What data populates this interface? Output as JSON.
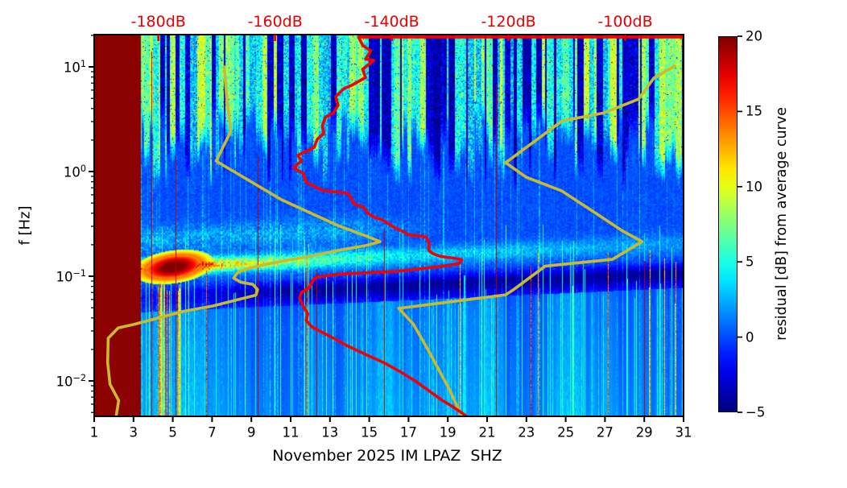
{
  "figure": {
    "background": "#ffffff"
  },
  "chart_data": {
    "type": "heatmap",
    "title": "November 2025 IM LPAZ  SHZ",
    "ylabel": "f [Hz]",
    "x_axis": {
      "units": "day of month",
      "range": [
        1,
        31
      ],
      "tick_values": [
        1,
        3,
        5,
        7,
        9,
        11,
        13,
        15,
        17,
        19,
        21,
        23,
        25,
        27,
        29,
        31
      ],
      "tick_labels": [
        "1",
        "3",
        "5",
        "7",
        "9",
        "11",
        "13",
        "15",
        "17",
        "19",
        "21",
        "23",
        "25",
        "27",
        "29",
        "31"
      ]
    },
    "y_axis": {
      "scale": "log",
      "units": "Hz",
      "range_hz": [
        0.0046,
        20.3
      ],
      "tick_values": [
        10,
        1,
        0.1,
        0.01
      ],
      "tick_label_exponents": [
        "1",
        "0",
        "−1",
        "−2"
      ]
    },
    "top_axis": {
      "units": "dB",
      "color": "#e60000",
      "range": [
        -191,
        -90
      ],
      "tick_values": [
        -180,
        -160,
        -140,
        -120,
        -100
      ],
      "tick_labels": [
        "-180dB",
        "-160dB",
        "-140dB",
        "-120dB",
        "-100dB"
      ]
    },
    "colorbar": {
      "label": "residual [dB] from average curve",
      "range": [
        -5,
        20
      ],
      "tick_values": [
        20,
        15,
        10,
        5,
        0,
        -5
      ],
      "tick_labels": [
        "20",
        "15",
        "10",
        "5",
        "0",
        "−5"
      ],
      "colormap": "jet"
    },
    "heatmap": {
      "colormap": "jet",
      "masked_region_days": [
        1,
        3.37
      ],
      "features": [
        "solid dark-red saturated block from day 1 to ~3.4 (no data / max residual)",
        "strong vertical striping (cyan/yellow on dark navy) above ~1 Hz for all days",
        "bright microseism band near 0.1-0.2 Hz, hottest days 4-6 (dark red core ~0.1 Hz)",
        "band fades to cyan toward day 31 and drifts up toward ~0.2 Hz",
        "dark navy low-residual band just below the microseism band (~0.04-0.08 Hz)",
        "smooth light-blue vertical streaks below ~0.03 Hz",
        "sparse thin dark-red vertical spike lines (e.g. near days 3.9, 5.1, 9.3, 12.3, 15.8, 21.4, 29)"
      ]
    },
    "curves": [
      {
        "name": "average-curve",
        "color": "#f40000",
        "x_units": "dB (top axis)",
        "points_db_hz": [
          [
            -90.0,
            19.3
          ],
          [
            -145.7,
            19.3
          ],
          [
            -145.0,
            16.1
          ],
          [
            -143.6,
            14.2
          ],
          [
            -144.5,
            11.9
          ],
          [
            -143.1,
            11.5
          ],
          [
            -145.0,
            9.5
          ],
          [
            -144.5,
            7.9
          ],
          [
            -146.8,
            6.7
          ],
          [
            -148.2,
            6.2
          ],
          [
            -149.6,
            5.2
          ],
          [
            -149.2,
            4.3
          ],
          [
            -150.0,
            3.62
          ],
          [
            -151.4,
            3.3
          ],
          [
            -151.9,
            2.74
          ],
          [
            -151.7,
            2.3
          ],
          [
            -152.8,
            2.03
          ],
          [
            -153.3,
            1.7
          ],
          [
            -156.1,
            1.43
          ],
          [
            -155.5,
            1.26
          ],
          [
            -156.8,
            1.09
          ],
          [
            -155.1,
            0.95
          ],
          [
            -154.7,
            0.79
          ],
          [
            -151.9,
            0.66
          ],
          [
            -147.5,
            0.62
          ],
          [
            -146.4,
            0.49
          ],
          [
            -144.8,
            0.455
          ],
          [
            -144.1,
            0.4
          ],
          [
            -143.0,
            0.366
          ],
          [
            -141.6,
            0.345
          ],
          [
            -140.5,
            0.316
          ],
          [
            -139.5,
            0.29
          ],
          [
            -138.1,
            0.268
          ],
          [
            -137.0,
            0.247
          ],
          [
            -135.1,
            0.243
          ],
          [
            -134.0,
            0.234
          ],
          [
            -133.6,
            0.206
          ],
          [
            -133.7,
            0.19
          ],
          [
            -133.6,
            0.175
          ],
          [
            -132.9,
            0.164
          ],
          [
            -131.7,
            0.155
          ],
          [
            -129.4,
            0.149
          ],
          [
            -128.0,
            0.144
          ],
          [
            -128.5,
            0.132
          ],
          [
            -131.2,
            0.125
          ],
          [
            -135.0,
            0.118
          ],
          [
            -139.5,
            0.111
          ],
          [
            -144.1,
            0.108
          ],
          [
            -148.8,
            0.105
          ],
          [
            -151.9,
            0.1
          ],
          [
            -153.3,
            0.096
          ],
          [
            -154.1,
            0.078
          ],
          [
            -155.5,
            0.07
          ],
          [
            -155.8,
            0.062
          ],
          [
            -155.2,
            0.052
          ],
          [
            -154.4,
            0.0436
          ],
          [
            -154.7,
            0.038
          ],
          [
            -153.6,
            0.0325
          ],
          [
            -151.9,
            0.029
          ],
          [
            -150.3,
            0.0262
          ],
          [
            -147.8,
            0.0219
          ],
          [
            -144.3,
            0.0177
          ],
          [
            -141.2,
            0.0148
          ],
          [
            -138.6,
            0.0123
          ],
          [
            -136.0,
            0.01
          ],
          [
            -133.7,
            0.0081
          ],
          [
            -131.5,
            0.0066
          ],
          [
            -129.6,
            0.0057
          ],
          [
            -127.4,
            0.0047
          ]
        ]
      },
      {
        "name": "reference-curve-low",
        "color": "#c9ba2e",
        "x_units": "dB (top axis)",
        "points_db_hz": [
          [
            -168.7,
            10.0
          ],
          [
            -168.3,
            5.2
          ],
          [
            -167.6,
            2.42
          ],
          [
            -170.1,
            1.26
          ],
          [
            -158.9,
            0.538
          ],
          [
            -149.2,
            0.305
          ],
          [
            -143.7,
            0.234
          ],
          [
            -142.0,
            0.214
          ],
          [
            -144.5,
            0.196
          ],
          [
            -148.6,
            0.179
          ],
          [
            -153.3,
            0.158
          ],
          [
            -157.9,
            0.142
          ],
          [
            -161.6,
            0.13
          ],
          [
            -164.5,
            0.119
          ],
          [
            -166.4,
            0.109
          ],
          [
            -167.1,
            0.096
          ],
          [
            -165.9,
            0.088
          ],
          [
            -163.8,
            0.0835
          ],
          [
            -163.0,
            0.0745
          ],
          [
            -163.3,
            0.066
          ],
          [
            -170.7,
            0.052
          ],
          [
            -175.9,
            0.046
          ],
          [
            -180.4,
            0.0394
          ],
          [
            -184.1,
            0.0348
          ],
          [
            -186.9,
            0.0321
          ],
          [
            -188.6,
            0.0256
          ],
          [
            -188.7,
            0.015
          ],
          [
            -188.3,
            0.0093
          ],
          [
            -186.8,
            0.0065
          ],
          [
            -187.2,
            0.00475
          ]
        ]
      },
      {
        "name": "reference-curve-high",
        "color": "#c9ba2e",
        "x_units": "dB (top axis)",
        "points_db_hz": [
          [
            -91.5,
            10.2
          ],
          [
            -95.1,
            7.8
          ],
          [
            -97.7,
            4.93
          ],
          [
            -103.6,
            3.64
          ],
          [
            -110.8,
            3.05
          ],
          [
            -120.5,
            1.215
          ],
          [
            -117.0,
            0.885
          ],
          [
            -110.9,
            0.654
          ],
          [
            -107.1,
            0.476
          ],
          [
            -100.4,
            0.27
          ],
          [
            -97.1,
            0.214
          ],
          [
            -102.2,
            0.145
          ],
          [
            -113.7,
            0.125
          ],
          [
            -119.2,
            0.0741
          ],
          [
            -120.5,
            0.0665
          ],
          [
            -138.8,
            0.0494
          ],
          [
            -136.3,
            0.0349
          ],
          [
            -133.9,
            0.0204
          ],
          [
            -130.2,
            0.00845
          ],
          [
            -128.0,
            0.00459
          ]
        ]
      }
    ]
  }
}
